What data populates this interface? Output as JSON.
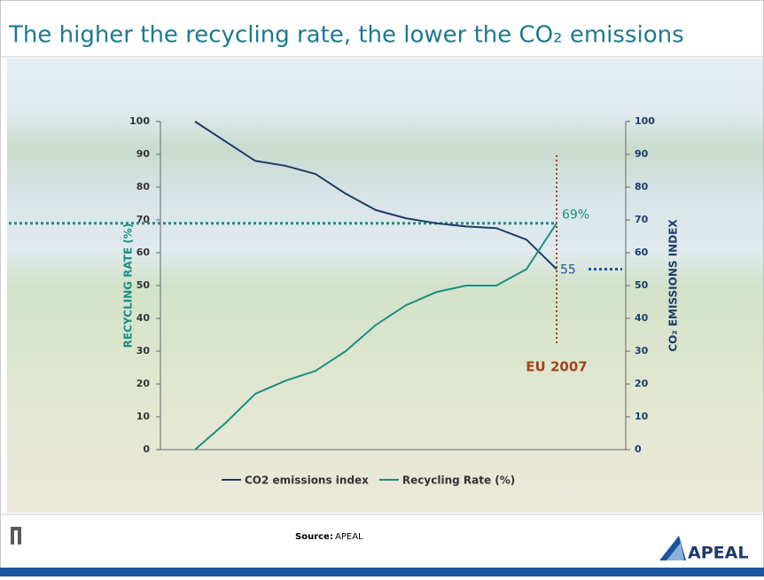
{
  "title": "The higher the recycling rate, the lower the CO₂ emissions",
  "source_label": "Source:",
  "source": "APEAL",
  "logo": "APEAL",
  "chart_data": {
    "type": "line",
    "categories": [
      null,
      null,
      null,
      null,
      null,
      null,
      null,
      null,
      null,
      null,
      null,
      null,
      null
    ],
    "series": [
      {
        "name": "CO2 emissions index",
        "color": "#1f3a6b",
        "axis": "y2",
        "values": [
          100,
          94,
          88,
          86.5,
          84,
          78,
          73,
          70.5,
          69,
          68,
          67.5,
          64,
          55
        ]
      },
      {
        "name": "Recycling Rate (%)",
        "color": "#1a8f80",
        "values": [
          0,
          8,
          17,
          21,
          24,
          30,
          38,
          44,
          48,
          50,
          50,
          55,
          69
        ],
        "value_labels": [
          null,
          null,
          null,
          null,
          null,
          null,
          null,
          null,
          null,
          null,
          null,
          null,
          "69%"
        ]
      }
    ],
    "ylabel": "RECYCLING RATE (%)",
    "y2label": "CO₂ EMISSIONS INDEX",
    "ylim": [
      0,
      100
    ],
    "yticks": [
      0,
      10,
      20,
      30,
      40,
      50,
      60,
      70,
      80,
      90,
      100
    ],
    "y2lim": [
      0,
      100
    ],
    "y2ticks": [
      0,
      10,
      20,
      30,
      40,
      50,
      60,
      70,
      80,
      90,
      100
    ],
    "annotation": "EU 2007",
    "legend": "bottom"
  }
}
